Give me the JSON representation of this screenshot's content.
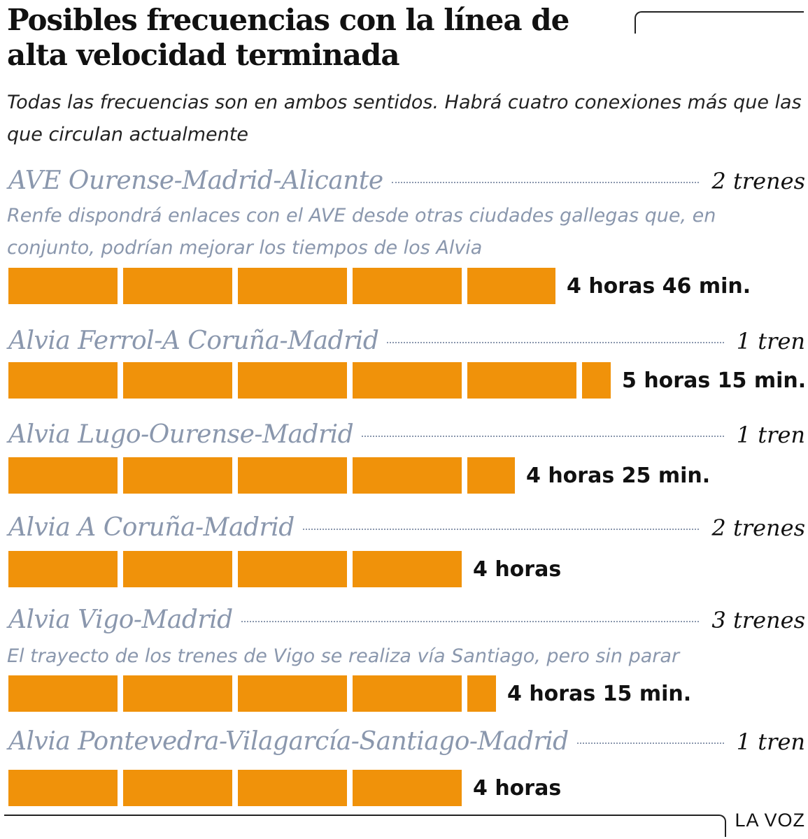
{
  "header": {
    "title": "Posibles frecuencias con la línea de alta velocidad terminada",
    "subtitle": "Todas las frecuencias son en ambos sentidos. Habrá cuatro conexiones más que las que circulan actualmente"
  },
  "footer": {
    "logo": "LA VOZ"
  },
  "chart_data": {
    "type": "bar",
    "orientation": "horizontal",
    "unit": "minutes",
    "colors": {
      "bar": "#f0920a",
      "route": "#8a97ad",
      "text": "#111111"
    },
    "rows": [
      {
        "route": "AVE Ourense-Madrid-Alicante",
        "trains": "2 trenes",
        "note": "Renfe dispondrá enlaces con el AVE desde otras ciudades gallegas que, en conjunto, podrían mejorar los tiempos de los Alvia",
        "minutes": 286,
        "time_label": "4 horas 46 min."
      },
      {
        "route": "Alvia Ferrol-A Coruña-Madrid",
        "trains": "1 tren",
        "note": "",
        "minutes": 315,
        "time_label": "5 horas 15 min."
      },
      {
        "route": "Alvia Lugo-Ourense-Madrid",
        "trains": "1 tren",
        "note": "",
        "minutes": 265,
        "time_label": "4 horas 25 min."
      },
      {
        "route": "Alvia A Coruña-Madrid",
        "trains": "2 trenes",
        "note": "",
        "minutes": 240,
        "time_label": "4 horas"
      },
      {
        "route": "Alvia Vigo-Madrid",
        "trains": "3 trenes",
        "note": "El trayecto de los trenes de Vigo se realiza vía Santiago, pero sin parar",
        "minutes": 255,
        "time_label": "4 horas 15 min."
      },
      {
        "route": "Alvia Pontevedra-Vilagarcía-Santiago-Madrid",
        "trains": "1 tren",
        "note": "",
        "minutes": 240,
        "time_label": "4 horas"
      }
    ]
  }
}
